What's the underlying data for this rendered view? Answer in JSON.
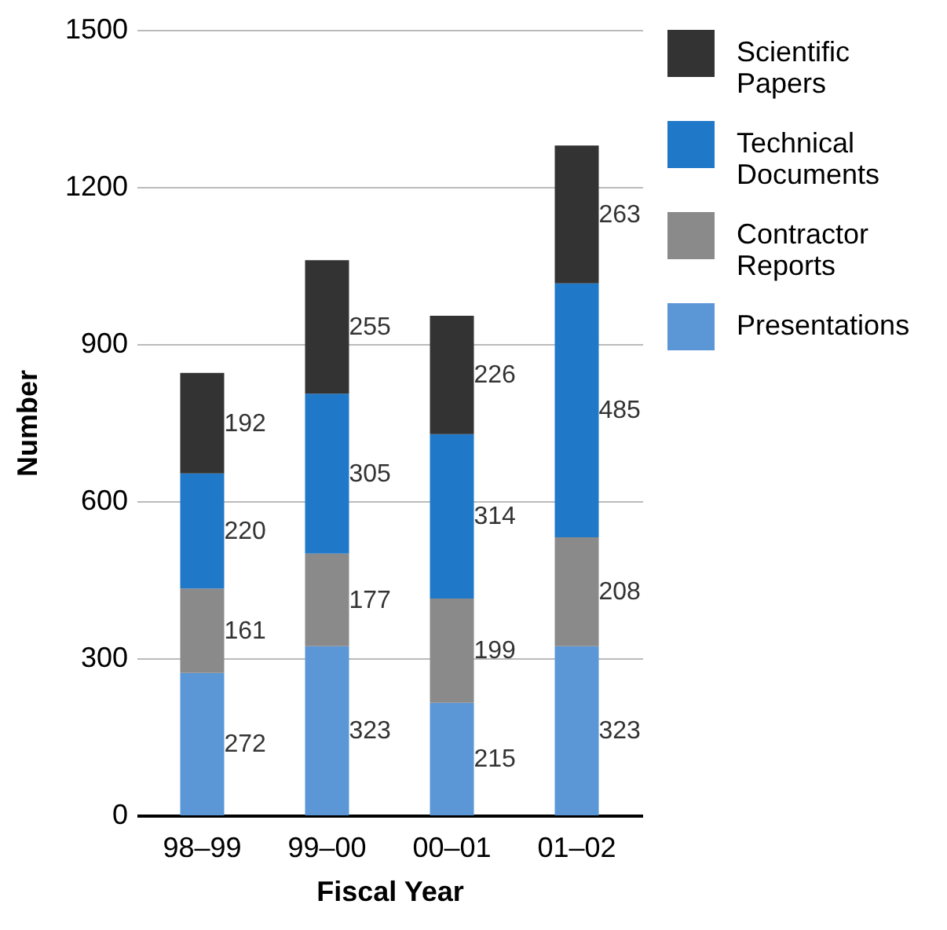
{
  "chart_data": {
    "type": "bar",
    "stacked": true,
    "xlabel": "Fiscal Year",
    "ylabel": "Number",
    "categories": [
      "98–99",
      "99–00",
      "00–01",
      "01–02"
    ],
    "series": [
      {
        "name": "Presentations",
        "color": "#5b96d6",
        "values": [
          272,
          323,
          215,
          323
        ]
      },
      {
        "name": "Contractor Reports",
        "color": "#8a8a8a",
        "values": [
          161,
          177,
          199,
          208
        ]
      },
      {
        "name": "Technical Documents",
        "color": "#1f78c8",
        "values": [
          220,
          305,
          314,
          485
        ]
      },
      {
        "name": "Scientific Papers",
        "color": "#333333",
        "values": [
          192,
          255,
          226,
          263
        ]
      }
    ],
    "ylim": [
      0,
      1500
    ],
    "yticks": [
      0,
      300,
      600,
      900,
      1200,
      1500
    ],
    "grid": "y",
    "legend": "top right",
    "data_labels": true
  }
}
